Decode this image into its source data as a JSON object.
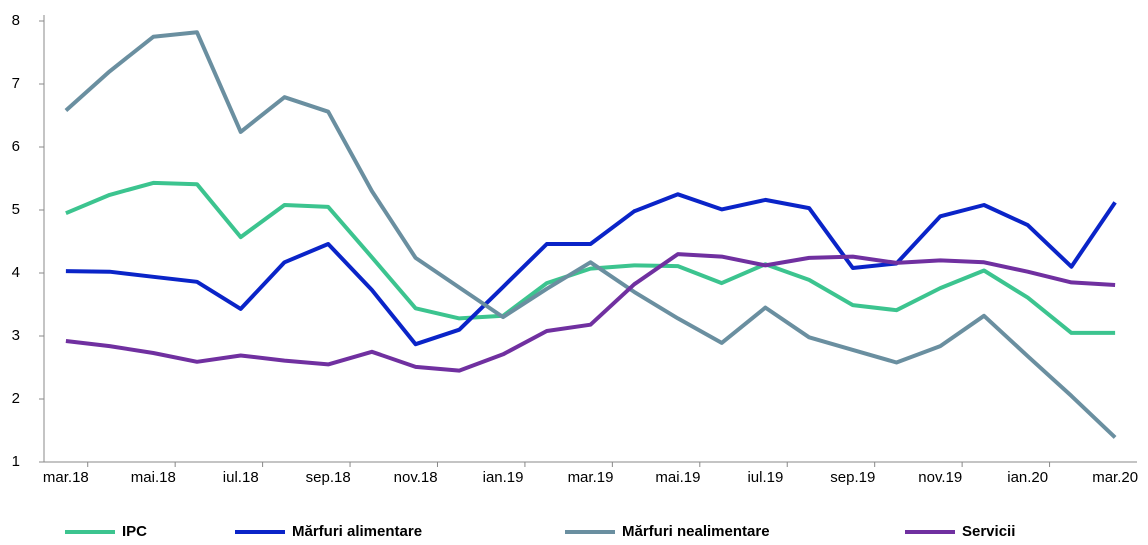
{
  "chart_data": {
    "type": "line",
    "categories": [
      "mar.18",
      null,
      "mai.18",
      null,
      "iul.18",
      null,
      "sep.18",
      null,
      "nov.18",
      null,
      "ian.19",
      null,
      "mar.19",
      null,
      "mai.19",
      null,
      "iul.19",
      null,
      "sep.19",
      null,
      "nov.19",
      null,
      "ian.20",
      null,
      "mar.20"
    ],
    "series": [
      {
        "name": "IPC",
        "color": "#3cc48f",
        "values": [
          4.95,
          5.24,
          5.43,
          5.41,
          4.57,
          5.08,
          5.05,
          4.25,
          3.44,
          3.28,
          3.32,
          3.84,
          4.07,
          4.12,
          4.11,
          3.84,
          4.14,
          3.89,
          3.49,
          3.41,
          3.76,
          4.04,
          3.61,
          3.05,
          3.05
        ]
      },
      {
        "name": "Mărfuri alimentare",
        "color": "#0a24c8",
        "values": [
          4.03,
          4.02,
          3.94,
          3.86,
          3.43,
          4.17,
          4.46,
          3.73,
          2.87,
          3.1,
          3.78,
          4.46,
          4.46,
          4.98,
          5.25,
          5.01,
          5.16,
          5.03,
          4.08,
          4.15,
          4.9,
          5.08,
          4.76,
          4.1,
          5.12
        ]
      },
      {
        "name": "Mărfuri nealimentare",
        "color": "#6a8fa0",
        "values": [
          6.58,
          7.2,
          7.75,
          7.82,
          6.24,
          6.79,
          6.56,
          5.3,
          4.24,
          3.77,
          3.3,
          3.75,
          4.17,
          3.7,
          3.28,
          2.89,
          3.45,
          2.98,
          2.78,
          2.58,
          2.84,
          3.32,
          2.68,
          2.05,
          1.39
        ]
      },
      {
        "name": "Servicii",
        "color": "#7030a0",
        "values": [
          2.92,
          2.84,
          2.73,
          2.59,
          2.69,
          2.61,
          2.55,
          2.75,
          2.51,
          2.45,
          2.71,
          3.08,
          3.18,
          3.82,
          4.3,
          4.26,
          4.12,
          4.24,
          4.26,
          4.16,
          4.2,
          4.17,
          4.02,
          3.85,
          3.81
        ]
      }
    ],
    "ylim": [
      1,
      8
    ],
    "yticks": [
      1,
      2,
      3,
      4,
      5,
      6,
      7,
      8
    ],
    "grid": false,
    "legend": "bottom"
  }
}
